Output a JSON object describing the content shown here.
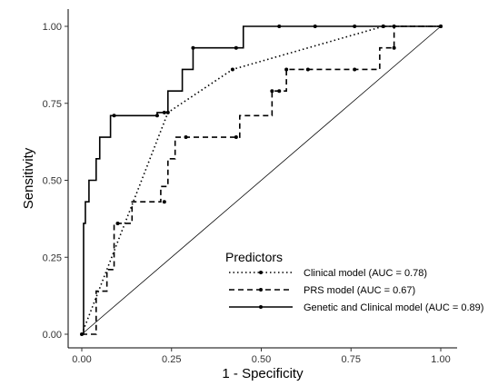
{
  "chart_data": {
    "type": "line",
    "title": "",
    "xlabel": "1 - Specificity",
    "ylabel": "Sensitivity",
    "xlim": [
      0,
      1
    ],
    "ylim": [
      0,
      1
    ],
    "x_ticks": [
      "0.00",
      "0.25",
      "0.50",
      "0.75",
      "1.00"
    ],
    "y_ticks": [
      "0.00",
      "0.25",
      "0.50",
      "0.75",
      "1.00"
    ],
    "grid": false,
    "legend": {
      "title": "Predictors",
      "position": "bottom-right inside plot"
    },
    "reference_line": {
      "from": [
        0,
        0
      ],
      "to": [
        1,
        1
      ]
    },
    "series": [
      {
        "name": "Clinical model (AUC = 0.78)",
        "line_style": "dotted",
        "color": "#000000",
        "x": [
          0,
          0.24,
          0.42,
          0.84,
          1.0
        ],
        "y": [
          0,
          0.72,
          0.86,
          1.0,
          1.0
        ]
      },
      {
        "name": "PRS model (AUC = 0.67)",
        "line_style": "dashed",
        "color": "#000000",
        "x": [
          0,
          0.04,
          0.04,
          0.07,
          0.07,
          0.09,
          0.09,
          0.14,
          0.14,
          0.22,
          0.22,
          0.24,
          0.24,
          0.26,
          0.26,
          0.28,
          0.28,
          0.44,
          0.44,
          0.53,
          0.53,
          0.55,
          0.55,
          0.57,
          0.57,
          0.83,
          0.83,
          0.87,
          0.87,
          1.0
        ],
        "y": [
          0,
          0,
          0.14,
          0.14,
          0.21,
          0.21,
          0.36,
          0.36,
          0.43,
          0.43,
          0.48,
          0.48,
          0.57,
          0.57,
          0.64,
          0.64,
          0.64,
          0.64,
          0.71,
          0.71,
          0.79,
          0.79,
          0.79,
          0.79,
          0.86,
          0.86,
          0.93,
          0.93,
          1.0,
          1.0
        ],
        "marker_x": [
          0.1,
          0.23,
          0.29,
          0.43,
          0.53,
          0.55,
          0.57,
          0.63,
          0.76,
          0.87
        ],
        "marker_y": [
          0.36,
          0.43,
          0.64,
          0.64,
          0.79,
          0.79,
          0.86,
          0.86,
          0.86,
          0.93
        ]
      },
      {
        "name": "Genetic and Clinical model (AUC = 0.89)",
        "line_style": "solid",
        "color": "#000000",
        "x": [
          0,
          0.005,
          0.005,
          0.01,
          0.01,
          0.02,
          0.02,
          0.03,
          0.03,
          0.04,
          0.04,
          0.05,
          0.05,
          0.06,
          0.06,
          0.08,
          0.08,
          0.21,
          0.21,
          0.24,
          0.24,
          0.28,
          0.28,
          0.31,
          0.31,
          0.45,
          0.45,
          1.0
        ],
        "y": [
          0,
          0,
          0.36,
          0.36,
          0.43,
          0.43,
          0.5,
          0.5,
          0.5,
          0.5,
          0.57,
          0.57,
          0.64,
          0.64,
          0.64,
          0.64,
          0.71,
          0.71,
          0.72,
          0.72,
          0.79,
          0.79,
          0.86,
          0.86,
          0.93,
          0.93,
          1.0,
          1.0
        ],
        "marker_x": [
          0.09,
          0.21,
          0.23,
          0.31,
          0.43,
          0.55,
          0.65,
          0.76,
          0.84,
          0.87,
          1.0
        ],
        "marker_y": [
          0.71,
          0.71,
          0.72,
          0.93,
          0.93,
          1.0,
          1.0,
          1.0,
          1.0,
          1.0,
          1.0
        ]
      }
    ]
  }
}
